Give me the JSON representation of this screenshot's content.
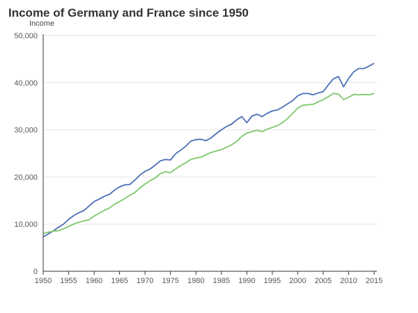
{
  "chart_data": {
    "type": "line",
    "title": "Income of Germany and France since 1950",
    "ylabel": "Income",
    "xlabel": "",
    "xlim": [
      1950,
      2015
    ],
    "ylim": [
      0,
      50000
    ],
    "x_ticks": [
      "1950",
      "1955",
      "1960",
      "1965",
      "1970",
      "1975",
      "1980",
      "1985",
      "1990",
      "1995",
      "2000",
      "2005",
      "2010",
      "2015"
    ],
    "y_ticks": [
      "0",
      "10,000",
      "20,000",
      "30,000",
      "40,000",
      "50,000"
    ],
    "grid": "horizontal",
    "colors": {
      "series1": "#4a6fb5",
      "series2": "#7dc86b",
      "grid": "#e6e6e6",
      "axis": "#333333"
    },
    "x": [
      1950,
      1951,
      1952,
      1953,
      1954,
      1955,
      1956,
      1957,
      1958,
      1959,
      1960,
      1961,
      1962,
      1963,
      1964,
      1965,
      1966,
      1967,
      1968,
      1969,
      1970,
      1971,
      1972,
      1973,
      1974,
      1975,
      1976,
      1977,
      1978,
      1979,
      1980,
      1981,
      1982,
      1983,
      1984,
      1985,
      1986,
      1987,
      1988,
      1989,
      1990,
      1991,
      1992,
      1993,
      1994,
      1995,
      1996,
      1997,
      1998,
      1999,
      2000,
      2001,
      2002,
      2003,
      2004,
      2005,
      2006,
      2007,
      2008,
      2009,
      2010,
      2011,
      2012,
      2013,
      2014,
      2015
    ],
    "series": [
      {
        "values": [
          7300,
          7900,
          8600,
          9300,
          10000,
          11000,
          11800,
          12400,
          12900,
          13800,
          14800,
          15300,
          15900,
          16300,
          17200,
          17900,
          18300,
          18400,
          19300,
          20400,
          21200,
          21700,
          22500,
          23400,
          23700,
          23600,
          24900,
          25700,
          26500,
          27600,
          27900,
          28000,
          27700,
          28300,
          29200,
          30000,
          30700,
          31200,
          32100,
          32800,
          31500,
          32900,
          33300,
          32800,
          33500,
          34000,
          34200,
          34800,
          35500,
          36200,
          37200,
          37700,
          37700,
          37400,
          37800,
          38100,
          39500,
          40800,
          41300,
          39100,
          40900,
          42300,
          43000,
          43000,
          43500,
          44100
        ]
      },
      {
        "values": [
          8000,
          8300,
          8500,
          8600,
          9000,
          9500,
          10000,
          10400,
          10700,
          10900,
          11700,
          12300,
          12900,
          13400,
          14200,
          14800,
          15400,
          16100,
          16700,
          17700,
          18500,
          19200,
          19800,
          20700,
          21100,
          20900,
          21700,
          22400,
          23000,
          23700,
          24000,
          24200,
          24700,
          25200,
          25500,
          25800,
          26300,
          26800,
          27500,
          28600,
          29300,
          29600,
          29900,
          29600,
          30100,
          30500,
          30900,
          31500,
          32400,
          33500,
          34600,
          35200,
          35300,
          35400,
          35900,
          36400,
          37000,
          37700,
          37600,
          36400,
          36900,
          37500,
          37400,
          37500,
          37400,
          37700
        ]
      }
    ]
  }
}
